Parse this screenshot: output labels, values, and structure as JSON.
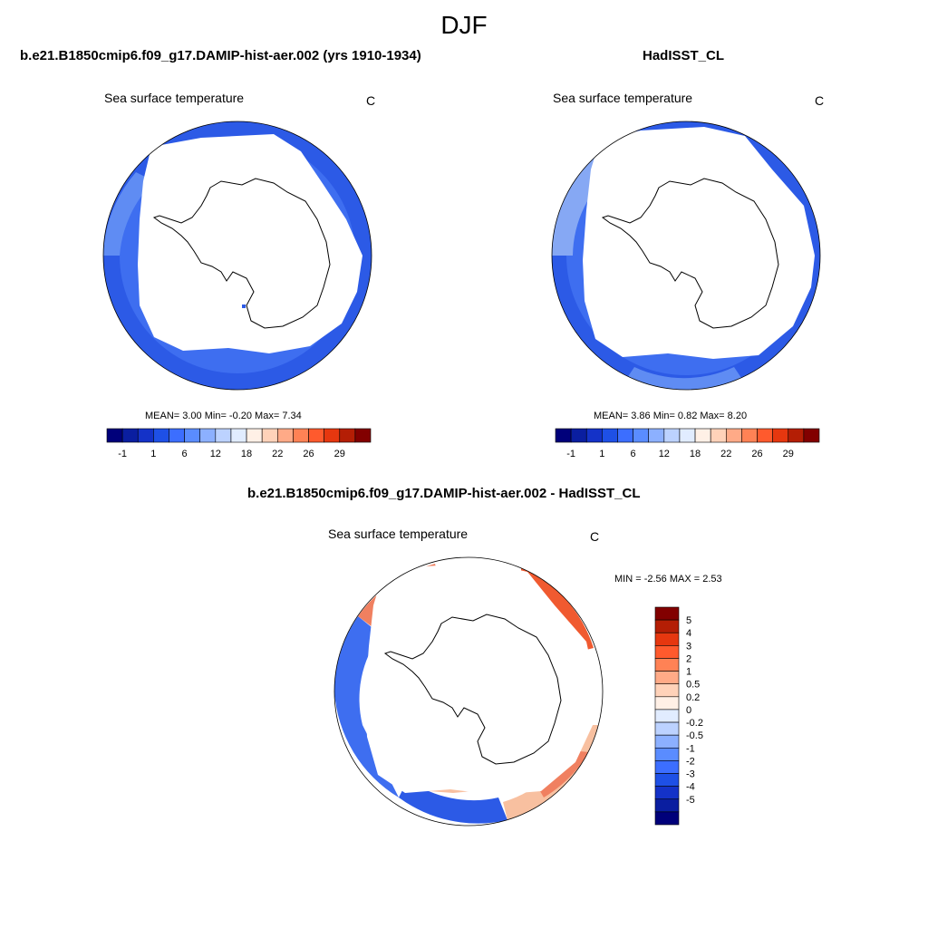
{
  "main_title": "DJF",
  "panels": [
    {
      "title": "b.e21.B1850cmip6.f09_g17.DAMIP-hist-aer.002 (yrs 1910-1934)",
      "variable": "Sea surface temperature",
      "units": "C",
      "stats": "MEAN=   3.00  Min=   -0.20  Max=   7.34"
    },
    {
      "title": "HadISST_CL",
      "variable": "Sea surface temperature",
      "units": "C",
      "stats": "MEAN=   3.86  Min=   0.82  Max=   8.20"
    },
    {
      "title": "b.e21.B1850cmip6.f09_g17.DAMIP-hist-aer.002 - HadISST_CL",
      "variable": "Sea surface temperature",
      "units": "C",
      "stats": "MIN =  -2.56 MAX =   2.53"
    }
  ],
  "colorbar_abs": {
    "colors": [
      "#00007a",
      "#0a1ea0",
      "#1432c8",
      "#1e50e6",
      "#3c6eff",
      "#5a8cff",
      "#8cb0ff",
      "#bcd2ff",
      "#e1ecff",
      "#fff0e6",
      "#ffd2b9",
      "#ffaa87",
      "#ff8255",
      "#ff5a2d",
      "#e6370f",
      "#b41e05",
      "#820000"
    ],
    "tick_labels": [
      "-1",
      "1",
      "6",
      "12",
      "18",
      "22",
      "26",
      "29"
    ]
  },
  "colorbar_diff": {
    "colors": [
      "#00007a",
      "#0a1ea0",
      "#1432c8",
      "#1e50e6",
      "#3c6eff",
      "#5a8cff",
      "#8cb0ff",
      "#bcd2ff",
      "#e1ecff",
      "#fff0e6",
      "#ffd2b9",
      "#ffaa87",
      "#ff8255",
      "#ff5a2d",
      "#e6370f",
      "#b41e05",
      "#820000"
    ],
    "tick_labels": [
      "5",
      "4",
      "3",
      "2",
      "1",
      "0.5",
      "0.2",
      "0",
      "-0.2",
      "-0.5",
      "-1",
      "-2",
      "-3",
      "-4",
      "-5"
    ]
  },
  "map_colors": {
    "ocean_dark": "#2c5ae6",
    "ocean_mid": "#3e6ef0",
    "ocean_light": "#86a8f4",
    "warm_light": "#f8c0a0",
    "warm_mid": "#f08060",
    "warm_dark": "#e05030"
  }
}
